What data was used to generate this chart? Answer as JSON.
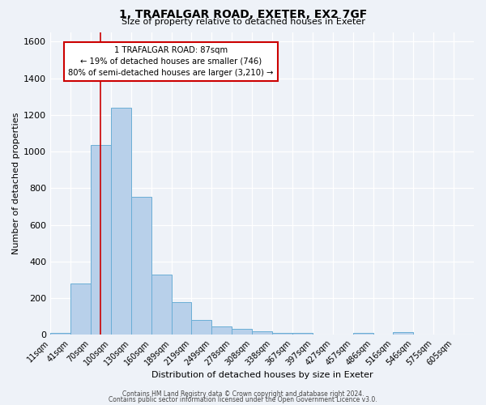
{
  "title": "1, TRAFALGAR ROAD, EXETER, EX2 7GF",
  "subtitle": "Size of property relative to detached houses in Exeter",
  "xlabel": "Distribution of detached houses by size in Exeter",
  "ylabel": "Number of detached properties",
  "categories": [
    "11sqm",
    "41sqm",
    "70sqm",
    "100sqm",
    "130sqm",
    "160sqm",
    "189sqm",
    "219sqm",
    "249sqm",
    "278sqm",
    "308sqm",
    "338sqm",
    "367sqm",
    "397sqm",
    "427sqm",
    "457sqm",
    "486sqm",
    "516sqm",
    "546sqm",
    "575sqm",
    "605sqm"
  ],
  "values": [
    10,
    280,
    1035,
    1240,
    755,
    330,
    180,
    83,
    48,
    35,
    18,
    13,
    12,
    0,
    0,
    12,
    0,
    17,
    0,
    0,
    0
  ],
  "bar_color": "#b8d0ea",
  "bar_edge_color": "#6aaed6",
  "marker_bin": 2.5,
  "marker_line_color": "#cc0000",
  "ylim": [
    0,
    1650
  ],
  "yticks": [
    0,
    200,
    400,
    600,
    800,
    1000,
    1200,
    1400,
    1600
  ],
  "annotation_title": "1 TRAFALGAR ROAD: 87sqm",
  "annotation_line1": "← 19% of detached houses are smaller (746)",
  "annotation_line2": "80% of semi-detached houses are larger (3,210) →",
  "annotation_box_color": "#ffffff",
  "annotation_box_edge": "#cc0000",
  "footer1": "Contains HM Land Registry data © Crown copyright and database right 2024.",
  "footer2": "Contains public sector information licensed under the Open Government Licence v3.0.",
  "background_color": "#eef2f8",
  "grid_color": "#ffffff",
  "title_fontsize": 10,
  "subtitle_fontsize": 8,
  "ylabel_fontsize": 8,
  "xlabel_fontsize": 8,
  "tick_fontsize": 7,
  "footer_fontsize": 5.5
}
